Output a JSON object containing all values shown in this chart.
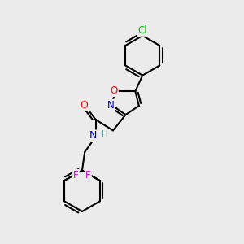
{
  "background_color": "#ebebeb",
  "bond_color": "#000000",
  "bond_width": 1.5,
  "atom_colors": {
    "C": "#000000",
    "N": "#0000cc",
    "O": "#ff0000",
    "Cl": "#00bb00",
    "F": "#cc00cc",
    "H": "#559999"
  },
  "font_size": 8.0,
  "figsize": [
    3.0,
    3.0
  ],
  "dpi": 100
}
